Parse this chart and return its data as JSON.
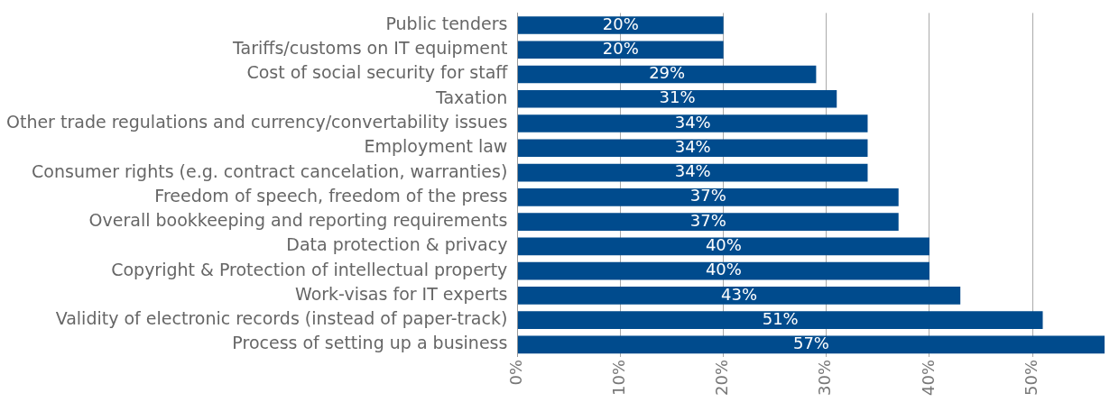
{
  "chart_data": {
    "type": "bar",
    "orientation": "horizontal",
    "categories": [
      "Public tenders",
      "Tariffs/customs on IT equipment",
      "Cost of social security for staff",
      "Taxation",
      "Other trade regulations and currency/convertability issues",
      "Employment law",
      "Consumer rights (e.g. contract cancelation, warranties)",
      "Freedom of speech, freedom of the press",
      "Overall bookkeeping and reporting requirements",
      "Data protection & privacy",
      "Copyright & Protection of intellectual property",
      "Work-visas for IT experts",
      "Validity of electronic records (instead of paper-track)",
      "Process of setting up a business"
    ],
    "values": [
      20,
      20,
      29,
      31,
      34,
      34,
      34,
      37,
      37,
      40,
      40,
      43,
      51,
      57
    ],
    "value_labels": [
      "20%",
      "20%",
      "29%",
      "31%",
      "34%",
      "34%",
      "34%",
      "37%",
      "37%",
      "40%",
      "40%",
      "43%",
      "51%",
      "57%"
    ],
    "color": "#004b8d",
    "xlim": [
      0,
      57
    ],
    "xticks": [
      {
        "value": 0,
        "label": "0%"
      },
      {
        "value": 10,
        "label": "10%"
      },
      {
        "value": 20,
        "label": "20%"
      },
      {
        "value": 30,
        "label": "30%"
      },
      {
        "value": 40,
        "label": "40%"
      },
      {
        "value": 50,
        "label": "50%"
      }
    ],
    "grid": "x",
    "legend": false
  }
}
